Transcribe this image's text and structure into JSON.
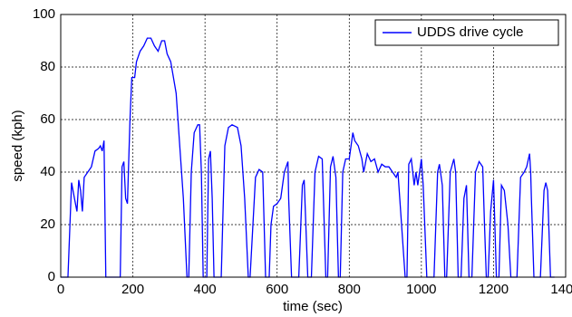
{
  "chart_data": {
    "type": "line",
    "x_label": "time (sec)",
    "y_label": "speed (kph)",
    "x": [
      0,
      20,
      30,
      38,
      45,
      50,
      55,
      60,
      65,
      75,
      85,
      95,
      105,
      110,
      115,
      120,
      125,
      165,
      170,
      175,
      180,
      185,
      188,
      192,
      197,
      205,
      210,
      220,
      230,
      240,
      250,
      260,
      270,
      280,
      288,
      295,
      305,
      320,
      330,
      340,
      350,
      355,
      362,
      370,
      380,
      385,
      390,
      395,
      405,
      410,
      415,
      420,
      425,
      445,
      455,
      465,
      475,
      490,
      500,
      510,
      520,
      525,
      540,
      550,
      560,
      568,
      578,
      583,
      590,
      600,
      610,
      615,
      620,
      630,
      632,
      640,
      660,
      670,
      675,
      685,
      695,
      705,
      715,
      725,
      735,
      740,
      748,
      755,
      763,
      770,
      775,
      782,
      790,
      800,
      810,
      815,
      825,
      835,
      840,
      850,
      860,
      870,
      880,
      890,
      900,
      910,
      920,
      930,
      935,
      945,
      955,
      960,
      965,
      972,
      980,
      985,
      990,
      995,
      1000,
      1005,
      1015,
      1035,
      1045,
      1050,
      1058,
      1065,
      1070,
      1080,
      1090,
      1095,
      1102,
      1110,
      1118,
      1125,
      1132,
      1140,
      1150,
      1160,
      1170,
      1175,
      1180,
      1185,
      1192,
      1200,
      1208,
      1215,
      1222,
      1230,
      1240,
      1248,
      1265,
      1275,
      1285,
      1292,
      1300,
      1303,
      1305,
      1312,
      1330,
      1340,
      1345,
      1350,
      1358,
      1369
    ],
    "series": [
      {
        "name": "UDDS drive cycle",
        "color": "#0000ff",
        "values": [
          0,
          0,
          36,
          30,
          25,
          37,
          33,
          25,
          38,
          40,
          42,
          48,
          49,
          50,
          48,
          52,
          0,
          0,
          42,
          44,
          30,
          28,
          42,
          60,
          76,
          76,
          82,
          86,
          88,
          91,
          91,
          88,
          86,
          90,
          90,
          85,
          82,
          70,
          50,
          30,
          0,
          0,
          40,
          55,
          58,
          58,
          40,
          0,
          0,
          45,
          48,
          30,
          0,
          0,
          50,
          57,
          58,
          57,
          50,
          30,
          0,
          0,
          38,
          41,
          40,
          0,
          0,
          20,
          27,
          28,
          30,
          35,
          40,
          44,
          30,
          0,
          0,
          35,
          37,
          0,
          0,
          40,
          46,
          45,
          0,
          0,
          42,
          46,
          38,
          0,
          0,
          40,
          45,
          45,
          55,
          52,
          50,
          45,
          40,
          47,
          44,
          45,
          40,
          43,
          42,
          42,
          40,
          38,
          40,
          20,
          0,
          0,
          43,
          45,
          35,
          40,
          35,
          40,
          45,
          35,
          0,
          0,
          40,
          43,
          35,
          0,
          0,
          40,
          45,
          40,
          0,
          0,
          30,
          35,
          0,
          0,
          40,
          44,
          42,
          20,
          0,
          0,
          25,
          37,
          0,
          0,
          35,
          33,
          20,
          0,
          0,
          38,
          40,
          42,
          47,
          40,
          30,
          0,
          0,
          33,
          36,
          33,
          0,
          0
        ]
      }
    ],
    "xlim": [
      0,
      1400
    ],
    "xticks": [
      0,
      200,
      400,
      600,
      800,
      1000,
      1200,
      1400
    ],
    "ylim": [
      0,
      100
    ],
    "yticks": [
      0,
      20,
      40,
      60,
      80,
      100
    ],
    "grid": true,
    "legend": "upper right"
  }
}
